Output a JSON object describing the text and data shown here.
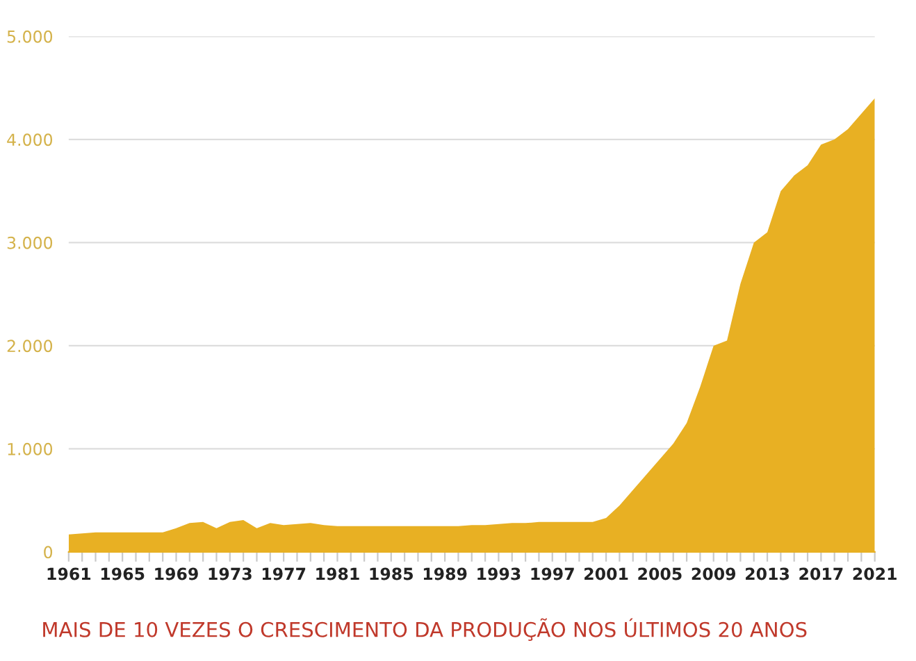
{
  "chart_data": {
    "type": "area",
    "x": [
      1961,
      1962,
      1963,
      1964,
      1965,
      1966,
      1967,
      1968,
      1969,
      1970,
      1971,
      1972,
      1973,
      1974,
      1975,
      1976,
      1977,
      1978,
      1979,
      1980,
      1981,
      1982,
      1983,
      1984,
      1985,
      1986,
      1987,
      1988,
      1989,
      1990,
      1991,
      1992,
      1993,
      1994,
      1995,
      1996,
      1997,
      1998,
      1999,
      2000,
      2001,
      2002,
      2003,
      2004,
      2005,
      2006,
      2007,
      2008,
      2009,
      2010,
      2011,
      2012,
      2013,
      2014,
      2015,
      2016,
      2017,
      2018,
      2019,
      2020,
      2021
    ],
    "series": [
      {
        "color": "#e8b023",
        "values": [
          170,
          180,
          190,
          190,
          190,
          190,
          190,
          190,
          230,
          280,
          290,
          230,
          290,
          310,
          230,
          280,
          260,
          270,
          280,
          260,
          250,
          250,
          250,
          250,
          250,
          250,
          250,
          250,
          250,
          250,
          260,
          260,
          270,
          280,
          280,
          290,
          290,
          290,
          290,
          290,
          330,
          450,
          600,
          750,
          900,
          1050,
          1250,
          1600,
          2000,
          2050,
          2600,
          3000,
          3100,
          3500,
          3650,
          3750,
          3950,
          4000,
          4100,
          4250,
          4400
        ]
      }
    ],
    "xlim": [
      1961,
      2021
    ],
    "xticks": [
      1961,
      {
        "value": 1962,
        "label": null
      },
      {
        "value": 1963,
        "label": null
      },
      {
        "value": 1964,
        "label": null
      },
      1965,
      {
        "value": 1966,
        "label": null
      },
      {
        "value": 1967,
        "label": null
      },
      {
        "value": 1968,
        "label": null
      },
      1969,
      {
        "value": 1970,
        "label": null
      },
      {
        "value": 1971,
        "label": null
      },
      {
        "value": 1972,
        "label": null
      },
      1973,
      {
        "value": 1974,
        "label": null
      },
      {
        "value": 1975,
        "label": null
      },
      {
        "value": 1976,
        "label": null
      },
      1977,
      {
        "value": 1978,
        "label": null
      },
      {
        "value": 1979,
        "label": null
      },
      {
        "value": 1980,
        "label": null
      },
      1981,
      {
        "value": 1982,
        "label": null
      },
      {
        "value": 1983,
        "label": null
      },
      {
        "value": 1984,
        "label": null
      },
      1985,
      {
        "value": 1986,
        "label": null
      },
      {
        "value": 1987,
        "label": null
      },
      {
        "value": 1988,
        "label": null
      },
      1989,
      {
        "value": 1990,
        "label": null
      },
      {
        "value": 1991,
        "label": null
      },
      {
        "value": 1992,
        "label": null
      },
      1993,
      {
        "value": 1994,
        "label": null
      },
      {
        "value": 1995,
        "label": null
      },
      {
        "value": 1996,
        "label": null
      },
      1997,
      {
        "value": 1998,
        "label": null
      },
      {
        "value": 1999,
        "label": null
      },
      {
        "value": 2000,
        "label": null
      },
      2001,
      {
        "value": 2002,
        "label": null
      },
      {
        "value": 2003,
        "label": null
      },
      {
        "value": 2004,
        "label": null
      },
      2005,
      {
        "value": 2006,
        "label": null
      },
      {
        "value": 2007,
        "label": null
      },
      {
        "value": 2008,
        "label": null
      },
      2009,
      {
        "value": 2010,
        "label": null
      },
      {
        "value": 2011,
        "label": null
      },
      {
        "value": 2012,
        "label": null
      },
      2013,
      {
        "value": 2014,
        "label": null
      },
      {
        "value": 2015,
        "label": null
      },
      {
        "value": 2016,
        "label": null
      },
      2017,
      {
        "value": 2018,
        "label": null
      },
      {
        "value": 2019,
        "label": null
      },
      {
        "value": 2020,
        "label": null
      },
      2021
    ],
    "ylim": [
      0,
      5000
    ],
    "yticks": [
      0,
      {
        "value": 1000,
        "label": "1.000"
      },
      {
        "value": 2000,
        "label": "2.000"
      },
      {
        "value": 3000,
        "label": "3.000"
      },
      {
        "value": 4000,
        "label": "4.000"
      },
      {
        "value": 5000,
        "label": "5.000"
      }
    ],
    "grid": "y",
    "annotations": [
      "MAIS DE 10 VEZES O CRESCIMENTO DA PRODUÇÃO NOS ÚLTIMOS 20 ANOS"
    ]
  }
}
